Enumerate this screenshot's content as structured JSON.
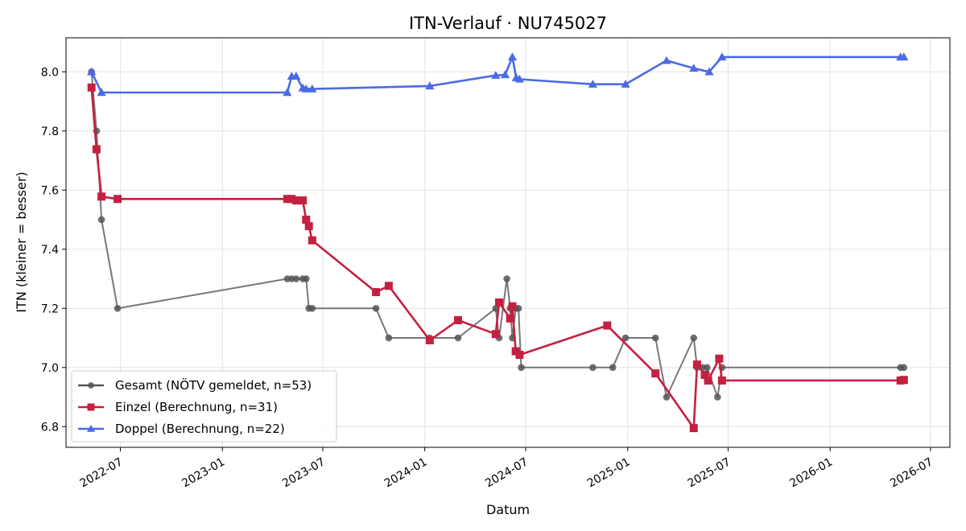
{
  "chart_data": {
    "type": "line",
    "title": "ITN-Verlauf · NU745027",
    "xlabel": "Datum",
    "ylabel": "ITN  (kleiner = besser)",
    "x_type": "date",
    "xlim": [
      "2022-03-25",
      "2026-08-05"
    ],
    "ylim": [
      6.73,
      8.115
    ],
    "x_ticks": [
      "2022-07-01",
      "2023-01-01",
      "2023-07-01",
      "2024-01-01",
      "2024-07-01",
      "2025-01-01",
      "2025-07-01",
      "2026-01-01",
      "2026-07-01"
    ],
    "x_tick_labels": [
      "2022-07",
      "2023-01",
      "2023-07",
      "2024-01",
      "2024-07",
      "2025-01",
      "2025-07",
      "2026-01",
      "2026-07"
    ],
    "y_ticks": [
      6.8,
      7.0,
      7.2,
      7.4,
      7.6,
      7.8,
      8.0
    ],
    "y_tick_labels": [
      "6.8",
      "7.0",
      "7.2",
      "7.4",
      "7.6",
      "7.8",
      "8.0"
    ],
    "grid": true,
    "legend_position": "lower-left",
    "series": [
      {
        "name": "Gesamt (NÖTV gemeldet, n=53)",
        "color": "#555555",
        "marker": "circle",
        "points": [
          [
            "2022-05-10",
            8.0
          ],
          [
            "2022-05-19",
            7.8
          ],
          [
            "2022-05-28",
            7.5
          ],
          [
            "2022-06-26",
            7.2
          ],
          [
            "2023-04-28",
            7.3
          ],
          [
            "2023-05-06",
            7.3
          ],
          [
            "2023-05-14",
            7.3
          ],
          [
            "2023-05-26",
            7.3
          ],
          [
            "2023-06-01",
            7.3
          ],
          [
            "2023-06-06",
            7.2
          ],
          [
            "2023-06-12",
            7.2
          ],
          [
            "2023-10-05",
            7.2
          ],
          [
            "2023-10-28",
            7.1
          ],
          [
            "2024-01-10",
            7.1
          ],
          [
            "2024-03-01",
            7.1
          ],
          [
            "2024-05-08",
            7.2
          ],
          [
            "2024-05-14",
            7.1
          ],
          [
            "2024-05-28",
            7.3
          ],
          [
            "2024-06-03",
            7.2
          ],
          [
            "2024-06-07",
            7.1
          ],
          [
            "2024-06-13",
            7.2
          ],
          [
            "2024-06-18",
            7.2
          ],
          [
            "2024-06-23",
            7.0
          ],
          [
            "2024-10-30",
            7.0
          ],
          [
            "2024-12-05",
            7.0
          ],
          [
            "2024-12-28",
            7.1
          ],
          [
            "2025-02-20",
            7.1
          ],
          [
            "2025-03-12",
            6.9
          ],
          [
            "2025-04-30",
            7.1
          ],
          [
            "2025-05-06",
            7.0
          ],
          [
            "2025-05-16",
            7.0
          ],
          [
            "2025-05-24",
            7.0
          ],
          [
            "2025-06-12",
            6.9
          ],
          [
            "2025-06-20",
            7.0
          ],
          [
            "2026-05-08",
            7.0
          ],
          [
            "2026-05-14",
            7.0
          ]
        ]
      },
      {
        "name": "Einzel (Berechnung, n=31)",
        "color": "#c42040",
        "marker": "square",
        "points": [
          [
            "2022-05-10",
            7.947
          ],
          [
            "2022-05-19",
            7.738
          ],
          [
            "2022-05-28",
            7.578
          ],
          [
            "2022-06-26",
            7.57
          ],
          [
            "2023-04-28",
            7.57
          ],
          [
            "2023-05-06",
            7.57
          ],
          [
            "2023-05-14",
            7.565
          ],
          [
            "2023-05-26",
            7.565
          ],
          [
            "2023-06-01",
            7.5
          ],
          [
            "2023-06-06",
            7.478
          ],
          [
            "2023-06-12",
            7.43
          ],
          [
            "2023-10-05",
            7.255
          ],
          [
            "2023-10-28",
            7.276
          ],
          [
            "2024-01-10",
            7.092
          ],
          [
            "2024-03-01",
            7.16
          ],
          [
            "2024-05-08",
            7.113
          ],
          [
            "2024-05-14",
            7.22
          ],
          [
            "2024-06-03",
            7.166
          ],
          [
            "2024-06-07",
            7.207
          ],
          [
            "2024-06-13",
            7.055
          ],
          [
            "2024-06-20",
            7.043
          ],
          [
            "2024-11-25",
            7.142
          ],
          [
            "2025-02-20",
            6.98
          ],
          [
            "2025-04-30",
            6.795
          ],
          [
            "2025-05-06",
            7.01
          ],
          [
            "2025-05-20",
            6.975
          ],
          [
            "2025-05-26",
            6.956
          ],
          [
            "2025-06-15",
            7.03
          ],
          [
            "2025-06-20",
            6.956
          ],
          [
            "2026-05-08",
            6.956
          ],
          [
            "2026-05-14",
            6.958
          ]
        ]
      },
      {
        "name": "Doppel (Berechnung, n=22)",
        "color": "#4a6ae6",
        "marker": "triangle",
        "points": [
          [
            "2022-05-10",
            8.0
          ],
          [
            "2022-05-28",
            7.93
          ],
          [
            "2023-04-28",
            7.93
          ],
          [
            "2023-05-06",
            7.985
          ],
          [
            "2023-05-14",
            7.985
          ],
          [
            "2023-05-26",
            7.945
          ],
          [
            "2023-06-01",
            7.942
          ],
          [
            "2023-06-12",
            7.942
          ],
          [
            "2024-01-10",
            7.952
          ],
          [
            "2024-05-08",
            7.988
          ],
          [
            "2024-05-25",
            7.99
          ],
          [
            "2024-06-07",
            8.05
          ],
          [
            "2024-06-14",
            7.98
          ],
          [
            "2024-06-20",
            7.975
          ],
          [
            "2024-10-30",
            7.958
          ],
          [
            "2024-12-28",
            7.958
          ],
          [
            "2025-03-12",
            8.038
          ],
          [
            "2025-04-30",
            8.012
          ],
          [
            "2025-05-28",
            8.0
          ],
          [
            "2025-06-20",
            8.05
          ],
          [
            "2026-05-08",
            8.05
          ],
          [
            "2026-05-14",
            8.05
          ]
        ]
      }
    ]
  }
}
